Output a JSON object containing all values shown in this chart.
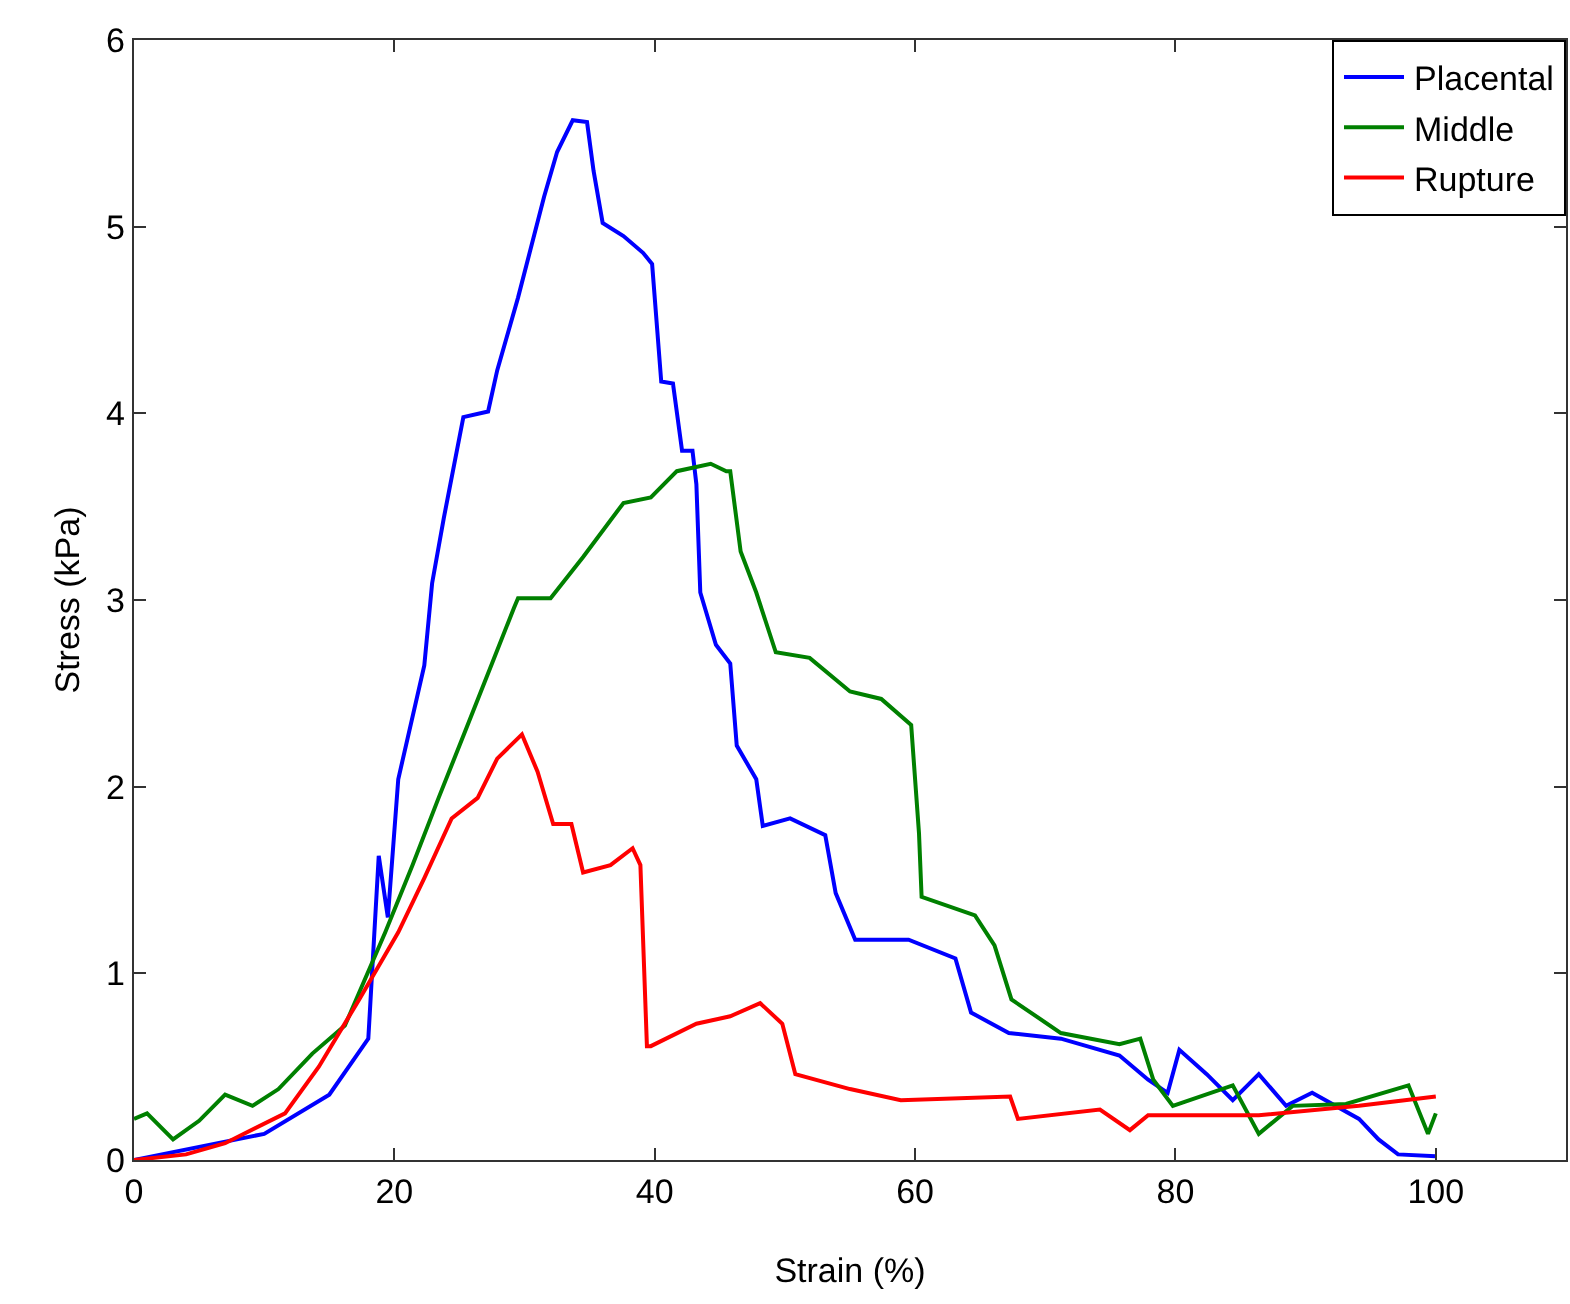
{
  "chart_data": {
    "type": "line",
    "xlabel": "Strain (%)",
    "ylabel": "Stress (kPa)",
    "xlim": [
      0,
      110
    ],
    "ylim": [
      0,
      6
    ],
    "xticks": [
      0,
      20,
      40,
      60,
      80,
      100
    ],
    "yticks": [
      0,
      1,
      2,
      3,
      4,
      5,
      6
    ],
    "grid": false,
    "legend": "top right",
    "marker": "none",
    "line_style": "solid",
    "series": [
      {
        "name": "Placental",
        "color": "#0000ff",
        "x": [
          0,
          10,
          15,
          18,
          18.8,
          19.5,
          20.3,
          22.3,
          22.9,
          23.8,
          25.3,
          27.2,
          27.9,
          29.5,
          31.5,
          32.5,
          33.7,
          34.8,
          35.3,
          36,
          37.6,
          39.1,
          39.8,
          40.5,
          41.4,
          42.1,
          42.9,
          43.2,
          43.5,
          44.7,
          45.8,
          46.3,
          47.8,
          48.3,
          50.4,
          53.1,
          53.9,
          55.4,
          59.5,
          63.1,
          64.3,
          67.2,
          71.2,
          75.7,
          77.9,
          79.4,
          80.3,
          82.4,
          84.4,
          86.4,
          88.5,
          90.5,
          94.1,
          95.6,
          97.1,
          100
        ],
        "values": [
          0,
          0.14,
          0.35,
          0.65,
          1.63,
          1.3,
          2.04,
          2.65,
          3.09,
          3.44,
          3.98,
          4.01,
          4.23,
          4.62,
          5.16,
          5.4,
          5.57,
          5.56,
          5.3,
          5.02,
          4.95,
          4.86,
          4.8,
          4.17,
          4.16,
          3.8,
          3.8,
          3.62,
          3.04,
          2.76,
          2.66,
          2.22,
          2.04,
          1.79,
          1.83,
          1.74,
          1.43,
          1.18,
          1.18,
          1.08,
          0.79,
          0.68,
          0.65,
          0.56,
          0.43,
          0.36,
          0.59,
          0.46,
          0.32,
          0.46,
          0.29,
          0.36,
          0.22,
          0.11,
          0.03,
          0.02
        ]
      },
      {
        "name": "Middle",
        "color": "#008000",
        "x": [
          0,
          1,
          3,
          5,
          7,
          9.1,
          11.1,
          13.7,
          16.2,
          19.3,
          21.4,
          23.4,
          25.4,
          27.5,
          29.2,
          29.5,
          32,
          34.5,
          37.6,
          39.7,
          41.7,
          44.3,
          45.5,
          45.8,
          46.6,
          47.8,
          49.3,
          51.9,
          55,
          57.4,
          59.7,
          60.3,
          60.5,
          64.6,
          66.1,
          67.4,
          71.2,
          75.7,
          77.3,
          78.3,
          79.8,
          84.4,
          86.4,
          89,
          93.1,
          97.9,
          99.4,
          100
        ],
        "values": [
          0.22,
          0.25,
          0.11,
          0.21,
          0.35,
          0.29,
          0.38,
          0.57,
          0.72,
          1.22,
          1.58,
          1.94,
          2.29,
          2.66,
          2.96,
          3.01,
          3.01,
          3.23,
          3.52,
          3.55,
          3.69,
          3.73,
          3.69,
          3.69,
          3.26,
          3.04,
          2.72,
          2.69,
          2.51,
          2.47,
          2.33,
          1.75,
          1.41,
          1.31,
          1.15,
          0.86,
          0.68,
          0.62,
          0.65,
          0.43,
          0.29,
          0.4,
          0.14,
          0.29,
          0.3,
          0.4,
          0.14,
          0.25
        ]
      },
      {
        "name": "Rupture",
        "color": "#ff0000",
        "x": [
          0,
          4,
          7,
          11.6,
          14.2,
          17.3,
          20.3,
          22.3,
          24.4,
          26.4,
          27.9,
          29.8,
          31,
          32.2,
          33.6,
          34.5,
          36.6,
          38.3,
          38.9,
          39.4,
          39.7,
          43.2,
          45.8,
          48.1,
          49.8,
          50.8,
          55,
          58.9,
          67.3,
          67.9,
          74.2,
          76.5,
          77.9,
          86.4,
          94.1,
          100
        ],
        "values": [
          0,
          0.03,
          0.09,
          0.25,
          0.5,
          0.86,
          1.22,
          1.51,
          1.83,
          1.94,
          2.15,
          2.28,
          2.08,
          1.8,
          1.8,
          1.54,
          1.58,
          1.67,
          1.58,
          0.61,
          0.61,
          0.73,
          0.77,
          0.84,
          0.73,
          0.46,
          0.38,
          0.32,
          0.34,
          0.22,
          0.27,
          0.16,
          0.24,
          0.24,
          0.29,
          0.34
        ]
      }
    ]
  }
}
